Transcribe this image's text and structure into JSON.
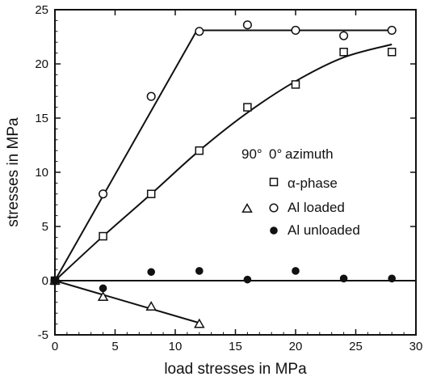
{
  "chart_data": {
    "type": "scatter",
    "title": "",
    "xlabel": "load stresses in MPa",
    "ylabel": "stresses in MPa",
    "xlim": [
      0,
      30
    ],
    "ylim": [
      -5,
      25
    ],
    "x_ticks": [
      0,
      5,
      10,
      15,
      20,
      25,
      30
    ],
    "y_ticks": [
      -5,
      0,
      5,
      10,
      15,
      20,
      25
    ],
    "grid": false,
    "legend_placement": "right",
    "legend_heading": {
      "col_90": "90°",
      "col_0": "0°",
      "label": "azimuth"
    },
    "series": [
      {
        "name": "α-phase",
        "marker": "open-square",
        "legend_column": "0°",
        "points": [
          [
            0,
            0
          ],
          [
            4,
            4.1
          ],
          [
            8,
            8
          ],
          [
            12,
            12
          ],
          [
            16,
            16
          ],
          [
            20,
            18.1
          ],
          [
            24,
            21.1
          ],
          [
            28,
            21.1
          ]
        ]
      },
      {
        "name": "Al loaded",
        "marker": "open-circle",
        "legend_column": "0°",
        "points": [
          [
            0,
            0
          ],
          [
            4,
            8
          ],
          [
            8,
            17
          ],
          [
            12,
            23
          ],
          [
            16,
            23.6
          ],
          [
            20,
            23.1
          ],
          [
            24,
            22.6
          ],
          [
            28,
            23.1
          ]
        ]
      },
      {
        "name": "",
        "marker": "open-triangle",
        "legend_column": "90°",
        "legend_ref": "Al loaded",
        "points": [
          [
            0,
            0
          ],
          [
            4,
            -1.5
          ],
          [
            8,
            -2.4
          ],
          [
            12,
            -4
          ]
        ]
      },
      {
        "name": "Al unloaded",
        "marker": "filled-circle",
        "legend_column": "0°",
        "points": [
          [
            0,
            0
          ],
          [
            4,
            -0.7
          ],
          [
            8,
            0.8
          ],
          [
            12,
            0.9
          ],
          [
            16,
            0.1
          ],
          [
            20,
            0.9
          ],
          [
            24,
            0.2
          ],
          [
            28,
            0.2
          ]
        ]
      }
    ],
    "fit_lines": [
      {
        "name": "Al loaded fit",
        "kind": "polyline",
        "points": [
          [
            0,
            0
          ],
          [
            11.8,
            23.1
          ],
          [
            28,
            23.1
          ]
        ]
      },
      {
        "name": "α-phase fit",
        "kind": "curve",
        "points": [
          [
            0,
            0
          ],
          [
            4,
            4.1
          ],
          [
            8,
            8
          ],
          [
            12,
            12
          ],
          [
            16,
            15.5
          ],
          [
            20,
            18.4
          ],
          [
            24,
            20.6
          ],
          [
            28,
            21.8
          ]
        ]
      },
      {
        "name": "Al unloaded fit",
        "kind": "polyline",
        "points": [
          [
            0,
            0
          ],
          [
            30,
            0
          ]
        ]
      },
      {
        "name": "90° fit",
        "kind": "polyline",
        "points": [
          [
            0,
            0
          ],
          [
            12,
            -3.9
          ]
        ]
      }
    ]
  },
  "colors": {
    "ink": "#111111",
    "background": "#ffffff"
  }
}
